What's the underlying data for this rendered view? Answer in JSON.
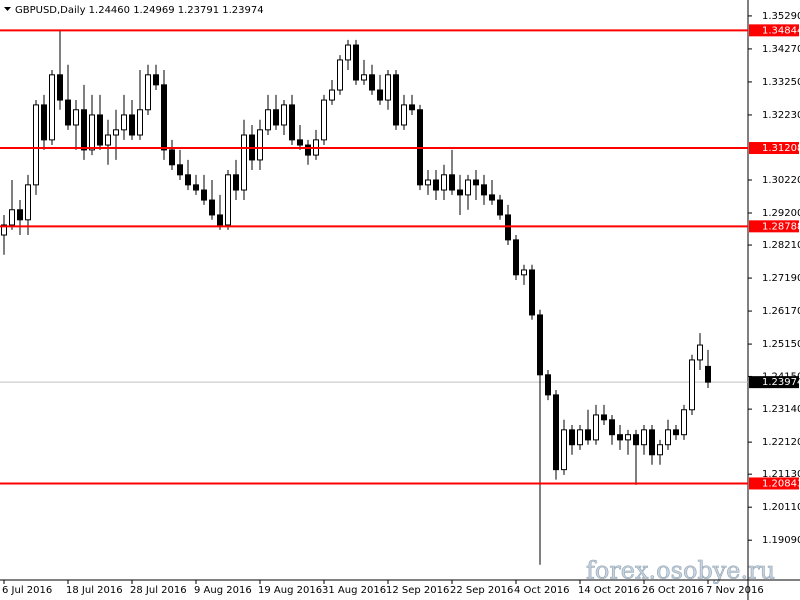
{
  "chart_data": {
    "type": "candlestick",
    "title": "GBPUSD,Daily  1.24460 1.24969 1.23791 1.23974",
    "watermark": "forex.osobye.ru",
    "categories": [
      "6 Jul 2016",
      null,
      null,
      null,
      null,
      null,
      null,
      null,
      "18 Jul 2016",
      null,
      null,
      null,
      null,
      null,
      null,
      null,
      "28 Jul 2016",
      null,
      null,
      null,
      null,
      null,
      null,
      null,
      "9 Aug 2016",
      null,
      null,
      null,
      null,
      null,
      null,
      null,
      "19 Aug 2016",
      null,
      null,
      null,
      null,
      null,
      null,
      null,
      "31 Aug 2016",
      null,
      null,
      null,
      null,
      null,
      null,
      null,
      "12 Sep 2016",
      null,
      null,
      null,
      null,
      null,
      null,
      null,
      "22 Sep 2016",
      null,
      null,
      null,
      null,
      null,
      null,
      null,
      "4 Oct 2016",
      null,
      null,
      null,
      null,
      null,
      null,
      null,
      "14 Oct 2016",
      null,
      null,
      null,
      null,
      null,
      null,
      null,
      "26 Oct 2016",
      null,
      null,
      null,
      null,
      null,
      null,
      null,
      "7 Nov 2016"
    ],
    "open": [
      1.2852,
      1.2883,
      1.293,
      1.2899,
      1.3007,
      1.3254,
      1.3146,
      1.3347,
      1.3269,
      1.3192,
      1.3239,
      1.3115,
      1.3223,
      1.313,
      1.3161,
      1.3177,
      1.3223,
      1.3161,
      1.3239,
      1.3347,
      1.3316,
      1.3115,
      1.3069,
      1.3038,
      1.3007,
      1.2991,
      1.296,
      1.2914,
      1.2883,
      1.3038,
      1.2991,
      1.3161,
      1.3084,
      1.3177,
      1.3239,
      1.3192,
      1.3254,
      1.3146,
      1.313,
      1.3099,
      1.3146,
      1.3269,
      1.33,
      1.3393,
      1.3439,
      1.3331,
      1.3347,
      1.33,
      1.3269,
      1.3347,
      1.3192,
      1.3254,
      1.3239,
      1.3007,
      1.3022,
      1.2991,
      1.3038,
      1.2991,
      1.2976,
      1.3022,
      1.3007,
      1.2976,
      1.296,
      1.2914,
      1.2837,
      1.2729,
      1.2744,
      1.2605,
      1.242,
      1.2358,
      1.2127,
      1.225,
      1.2204,
      1.225,
      1.2219,
      1.2296,
      1.2281,
      1.2235,
      1.2219,
      1.2235,
      1.2204,
      1.225,
      1.2173,
      1.2204,
      1.225,
      1.2235,
      1.2312,
      1.2466,
      1.2446
    ],
    "high": [
      1.2914,
      1.3022,
      1.296,
      1.3038,
      1.3269,
      1.3285,
      1.3362,
      1.3486,
      1.3378,
      1.3269,
      1.3316,
      1.3285,
      1.3285,
      1.3208,
      1.3239,
      1.3285,
      1.3269,
      1.3362,
      1.3378,
      1.3378,
      1.3362,
      1.3146,
      1.3115,
      1.3084,
      1.3038,
      1.3038,
      1.3022,
      1.2976,
      1.3053,
      1.3084,
      1.3208,
      1.3192,
      1.3208,
      1.3285,
      1.3285,
      1.3269,
      1.3285,
      1.3192,
      1.3146,
      1.3177,
      1.3285,
      1.3331,
      1.3408,
      1.3455,
      1.3455,
      1.3393,
      1.3378,
      1.3347,
      1.3362,
      1.3362,
      1.3285,
      1.3285,
      1.3254,
      1.3053,
      1.3053,
      1.3069,
      1.3115,
      1.3038,
      1.3038,
      1.3053,
      1.3038,
      1.3022,
      1.2976,
      1.2945,
      1.2852,
      1.276,
      1.276,
      1.2621,
      1.2435,
      1.2373,
      1.2281,
      1.2265,
      1.2265,
      1.2312,
      1.2327,
      1.2327,
      1.2296,
      1.2265,
      1.225,
      1.225,
      1.2265,
      1.2265,
      1.2219,
      1.2281,
      1.2265,
      1.2327,
      1.2482,
      1.2549,
      1.24969
    ],
    "low": [
      1.2791,
      1.2868,
      1.2852,
      1.2852,
      1.2976,
      1.3115,
      1.313,
      1.3239,
      1.3177,
      1.3115,
      1.3084,
      1.3099,
      1.3115,
      1.3069,
      1.3084,
      1.3146,
      1.3146,
      1.3146,
      1.3223,
      1.33,
      1.3084,
      1.3053,
      1.3022,
      1.2991,
      1.2976,
      1.2945,
      1.2899,
      1.2868,
      1.2868,
      1.296,
      1.296,
      1.3053,
      1.3053,
      1.3161,
      1.3177,
      1.3161,
      1.313,
      1.3115,
      1.3069,
      1.3084,
      1.313,
      1.3254,
      1.3285,
      1.3362,
      1.3316,
      1.3316,
      1.3285,
      1.3254,
      1.3239,
      1.3177,
      1.3177,
      1.3223,
      1.2991,
      1.2976,
      1.296,
      1.296,
      1.2976,
      1.2914,
      1.293,
      1.296,
      1.2945,
      1.2945,
      1.2899,
      1.2821,
      1.2713,
      1.2698,
      1.259,
      1.1833,
      1.2342,
      1.2096,
      1.2111,
      1.2173,
      1.2188,
      1.2204,
      1.2204,
      1.2265,
      1.2204,
      1.2188,
      1.2173,
      1.208,
      1.2173,
      1.2142,
      1.2142,
      1.2188,
      1.2219,
      1.2219,
      1.2296,
      1.2435,
      1.23791
    ],
    "close": [
      1.2883,
      1.293,
      1.2899,
      1.3007,
      1.3254,
      1.3146,
      1.3347,
      1.3269,
      1.3192,
      1.3239,
      1.3115,
      1.3223,
      1.313,
      1.3161,
      1.3177,
      1.3223,
      1.3161,
      1.3239,
      1.3347,
      1.3316,
      1.3115,
      1.3069,
      1.3038,
      1.3007,
      1.2991,
      1.296,
      1.2914,
      1.2883,
      1.3038,
      1.2991,
      1.3161,
      1.3084,
      1.3177,
      1.3239,
      1.3192,
      1.3254,
      1.3146,
      1.313,
      1.3099,
      1.3146,
      1.3269,
      1.33,
      1.3393,
      1.3439,
      1.3331,
      1.3347,
      1.33,
      1.3269,
      1.3347,
      1.3192,
      1.3254,
      1.3239,
      1.3007,
      1.3022,
      1.2991,
      1.3038,
      1.2991,
      1.2976,
      1.3022,
      1.3007,
      1.2976,
      1.296,
      1.2914,
      1.2837,
      1.2729,
      1.2744,
      1.2605,
      1.242,
      1.2358,
      1.2127,
      1.225,
      1.2204,
      1.225,
      1.2219,
      1.2296,
      1.2281,
      1.2235,
      1.2219,
      1.2235,
      1.2204,
      1.225,
      1.2173,
      1.2204,
      1.225,
      1.2235,
      1.2312,
      1.2466,
      1.2512,
      1.23974
    ],
    "levels": [
      1.34844,
      1.31208,
      1.28788,
      1.20843
    ],
    "level_color": "#ff0000",
    "bull_color": "#ffffff",
    "bear_color": "#000000",
    "ylim": [
      1.1786,
      1.3572
    ],
    "yticks": [
      {
        "value": 1.3529,
        "label": "1.35290"
      },
      {
        "value": 1.3427,
        "label": "1.34270"
      },
      {
        "value": 1.3325,
        "label": "1.33250"
      },
      {
        "value": 1.3223,
        "label": "1.32230"
      },
      {
        "value": 1.3022,
        "label": "1.30220"
      },
      {
        "value": 1.292,
        "label": "1.29200"
      },
      {
        "value": 1.2821,
        "label": "1.28210"
      },
      {
        "value": 1.2719,
        "label": "1.27190"
      },
      {
        "value": 1.2617,
        "label": "1.26170"
      },
      {
        "value": 1.2515,
        "label": "1.25150"
      },
      {
        "value": 1.2415,
        "label": "1.24150"
      },
      {
        "value": 1.2314,
        "label": "1.23140"
      },
      {
        "value": 1.2212,
        "label": "1.22120"
      },
      {
        "value": 1.2113,
        "label": "1.21130"
      },
      {
        "value": 1.2011,
        "label": "1.20110"
      },
      {
        "value": 1.1909,
        "label": "1.19090"
      }
    ],
    "grid": false
  }
}
